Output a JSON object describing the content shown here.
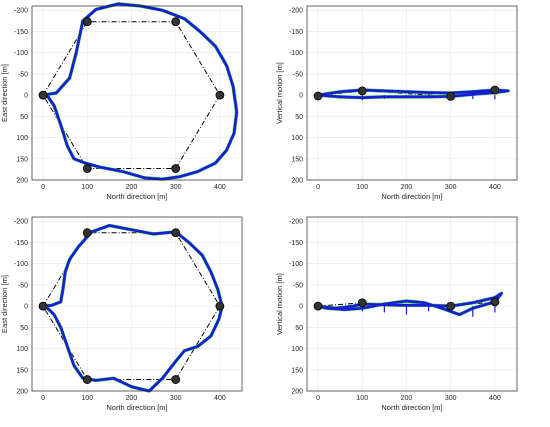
{
  "chart_data": [
    {
      "type": "line",
      "panel": "top-left",
      "xlabel": "North direction [m]",
      "ylabel": "East direction [m]",
      "xlim": [
        -25,
        450
      ],
      "ylim": [
        200,
        -210
      ],
      "xticks": [
        "0",
        "100",
        "200",
        "300",
        "400"
      ],
      "yticks": [
        "-200",
        "-150",
        "-100",
        "-50",
        "0",
        "50",
        "100",
        "150",
        "200"
      ],
      "ytick_values": [
        -200,
        -150,
        -100,
        -50,
        0,
        50,
        100,
        150,
        200
      ],
      "xtick_values": [
        0,
        100,
        200,
        300,
        400
      ],
      "grid": true,
      "colors": {
        "path": "#1a1ad8",
        "ref": "#3ccf4a",
        "waypoint": "#000000",
        "dashed": "#000000"
      },
      "waypoints": [
        [
          0,
          0
        ],
        [
          100,
          -173
        ],
        [
          300,
          -173
        ],
        [
          400,
          0
        ],
        [
          300,
          173
        ],
        [
          100,
          173
        ]
      ],
      "series": [
        {
          "style": "thick",
          "x": [
            0,
            30,
            60,
            75,
            90,
            120,
            170,
            220,
            270,
            320,
            355,
            390,
            415,
            430,
            438,
            432,
            415,
            390,
            350,
            310,
            270,
            230,
            180,
            130,
            95,
            70,
            55,
            40,
            25,
            12,
            0
          ],
          "y": [
            0,
            -5,
            -40,
            -100,
            -175,
            -202,
            -215,
            -210,
            -200,
            -180,
            -150,
            -115,
            -70,
            -20,
            40,
            90,
            130,
            160,
            180,
            192,
            198,
            195,
            180,
            170,
            160,
            150,
            120,
            70,
            25,
            5,
            0
          ]
        }
      ]
    },
    {
      "type": "line",
      "panel": "top-right",
      "xlabel": "North direction [m]",
      "ylabel": "Vertical motion [m]",
      "xlim": [
        -25,
        450
      ],
      "ylim": [
        200,
        -210
      ],
      "xticks": [
        "0",
        "100",
        "200",
        "300",
        "400"
      ],
      "yticks": [
        "-200",
        "-150",
        "-100",
        "-50",
        "0",
        "50",
        "100",
        "150",
        "200"
      ],
      "ytick_values": [
        -200,
        -150,
        -100,
        -50,
        0,
        50,
        100,
        150,
        200
      ],
      "xtick_values": [
        0,
        100,
        200,
        300,
        400
      ],
      "grid": true,
      "colors": {
        "path": "#1a1ad8",
        "ref": "#3ccf4a",
        "waypoint": "#000000",
        "dashed": "#000000"
      },
      "waypoints": [
        [
          0,
          2
        ],
        [
          100,
          -10
        ],
        [
          300,
          3
        ],
        [
          400,
          -12
        ]
      ],
      "series": [
        {
          "style": "thick",
          "x": [
            0,
            50,
            100,
            150,
            200,
            250,
            300,
            350,
            400,
            430,
            400,
            350,
            300,
            250,
            200,
            150,
            100,
            50,
            0
          ],
          "y": [
            0,
            -8,
            -12,
            -10,
            -8,
            -6,
            -5,
            -8,
            -12,
            -10,
            -6,
            -2,
            3,
            4,
            4,
            4,
            6,
            4,
            0
          ]
        },
        {
          "style": "ticks",
          "x": [
            0,
            50,
            100,
            150,
            200,
            250,
            300,
            350,
            400
          ],
          "y": [
            3,
            8,
            12,
            9,
            6,
            6,
            7,
            9,
            10
          ]
        }
      ]
    },
    {
      "type": "line",
      "panel": "bottom-left",
      "xlabel": "North direction [m]",
      "ylabel": "East direction [m]",
      "xlim": [
        -25,
        450
      ],
      "ylim": [
        200,
        -210
      ],
      "xticks": [
        "0",
        "100",
        "200",
        "300",
        "400"
      ],
      "yticks": [
        "-200",
        "-150",
        "-100",
        "-50",
        "0",
        "50",
        "100",
        "150",
        "200"
      ],
      "ytick_values": [
        -200,
        -150,
        -100,
        -50,
        0,
        50,
        100,
        150,
        200
      ],
      "xtick_values": [
        0,
        100,
        200,
        300,
        400
      ],
      "grid": true,
      "colors": {
        "path": "#1a1ad8",
        "ref": "#3ccf4a",
        "waypoint": "#000000",
        "dashed": "#000000"
      },
      "waypoints": [
        [
          0,
          0
        ],
        [
          100,
          -173
        ],
        [
          300,
          -173
        ],
        [
          400,
          0
        ],
        [
          300,
          173
        ],
        [
          100,
          173
        ]
      ],
      "series": [
        {
          "style": "thick",
          "x": [
            0,
            20,
            40,
            45,
            50,
            60,
            80,
            110,
            150,
            200,
            250,
            300,
            330,
            360,
            380,
            395,
            405,
            398,
            380,
            350,
            320,
            300,
            270,
            240,
            200,
            160,
            120,
            90,
            70,
            60,
            50,
            40,
            25,
            10,
            0
          ],
          "y": [
            0,
            -2,
            -10,
            -40,
            -80,
            -110,
            -140,
            -175,
            -190,
            -180,
            -170,
            -175,
            -150,
            -120,
            -80,
            -40,
            0,
            30,
            70,
            95,
            105,
            130,
            170,
            200,
            190,
            170,
            175,
            170,
            140,
            110,
            80,
            50,
            20,
            5,
            0
          ]
        }
      ]
    },
    {
      "type": "line",
      "panel": "bottom-right",
      "xlabel": "North direction [m]",
      "ylabel": "Vertical motion [m]",
      "xlim": [
        -25,
        450
      ],
      "ylim": [
        200,
        -210
      ],
      "xticks": [
        "0",
        "100",
        "200",
        "300",
        "400"
      ],
      "yticks": [
        "-200",
        "-150",
        "-100",
        "-50",
        "0",
        "50",
        "100",
        "150",
        "200"
      ],
      "ytick_values": [
        -200,
        -150,
        -100,
        -50,
        0,
        50,
        100,
        150,
        200
      ],
      "xtick_values": [
        0,
        100,
        200,
        300,
        400
      ],
      "grid": true,
      "colors": {
        "path": "#1a1ad8",
        "ref": "#3ccf4a",
        "waypoint": "#000000",
        "dashed": "#000000"
      },
      "waypoints": [
        [
          0,
          0
        ],
        [
          100,
          -8
        ],
        [
          300,
          0
        ],
        [
          400,
          -10
        ]
      ],
      "series": [
        {
          "style": "thick",
          "x": [
            0,
            40,
            80,
            100,
            150,
            200,
            250,
            300,
            350,
            400,
            415,
            400,
            350,
            320,
            280,
            240,
            200,
            150,
            100,
            60,
            20,
            0
          ],
          "y": [
            0,
            5,
            0,
            -5,
            -3,
            -2,
            -2,
            0,
            -8,
            -20,
            -30,
            -10,
            5,
            20,
            5,
            -8,
            -12,
            -5,
            5,
            8,
            5,
            0
          ]
        },
        {
          "style": "ticks",
          "x": [
            0,
            50,
            100,
            150,
            200,
            250,
            300,
            350,
            400
          ],
          "y": [
            5,
            10,
            12,
            15,
            20,
            12,
            10,
            25,
            15
          ]
        }
      ]
    }
  ]
}
